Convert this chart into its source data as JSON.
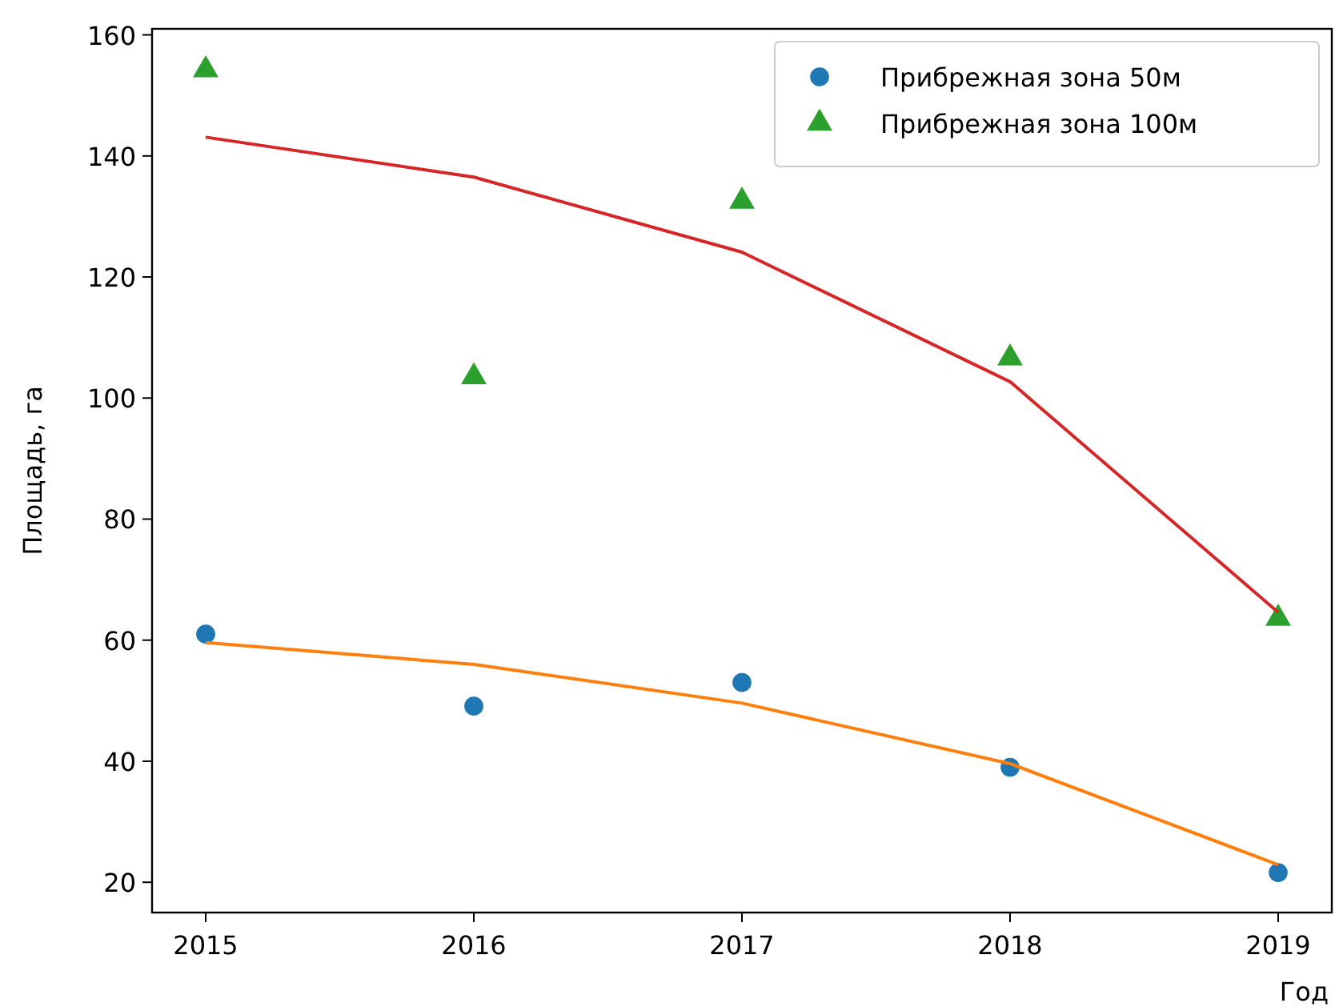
{
  "chart_data": {
    "type": "scatter",
    "xlabel": "Год",
    "ylabel": "Площадь, га",
    "x": [
      2015,
      2016,
      2017,
      2018,
      2019
    ],
    "xlim": [
      2014.8,
      2019.2
    ],
    "xticks": [
      2015,
      2016,
      2017,
      2018,
      2019
    ],
    "ylim": [
      15,
      161
    ],
    "yticks": [
      20,
      40,
      60,
      80,
      100,
      120,
      140,
      160
    ],
    "grid": false,
    "legend": "top right",
    "series": [
      {
        "name": "Прибрежная зона 50м",
        "marker": "circle",
        "color": "#1f77b4",
        "values": [
          61,
          49.1,
          53,
          39,
          21.6
        ]
      },
      {
        "name": "Прибрежная зона 100м",
        "marker": "triangle",
        "color": "#2ca02c",
        "values": [
          154.2,
          103.5,
          132.5,
          106.6,
          63.6
        ]
      },
      {
        "type": "line",
        "marker": "none",
        "color": "#ff7f0e",
        "values": [
          59.6,
          56,
          49.6,
          39.6,
          22.9
        ]
      },
      {
        "type": "line",
        "marker": "none",
        "color": "#d62728",
        "values": [
          143.1,
          136.5,
          124.1,
          102.7,
          64.6
        ]
      }
    ]
  }
}
